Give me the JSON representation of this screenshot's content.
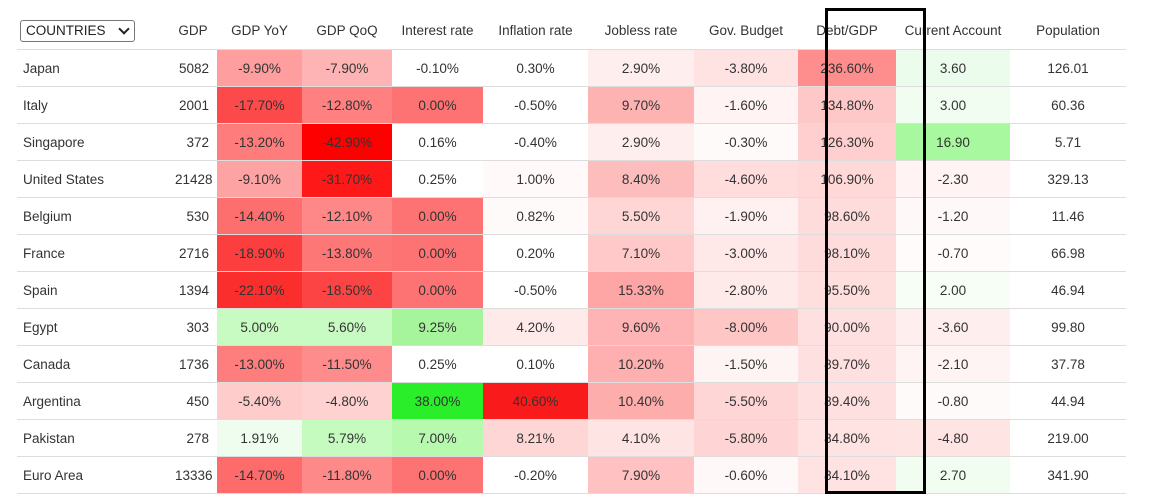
{
  "country_selector": {
    "label": "COUNTRIES"
  },
  "headers": [
    "GDP",
    "GDP YoY",
    "GDP QoQ",
    "Interest rate",
    "Inflation rate",
    "Jobless rate",
    "Gov. Budget",
    "Debt/GDP",
    "Current Account",
    "Population"
  ],
  "highlighted_column": "Debt/GDP",
  "rows": [
    {
      "country": "Japan",
      "gdp": "5082",
      "cells": [
        {
          "value": "-9.90%",
          "color": "#fe9e9e"
        },
        {
          "value": "-7.90%",
          "color": "#feb4b4"
        },
        {
          "value": "-0.10%",
          "color": "#ffffff"
        },
        {
          "value": "0.30%",
          "color": "#ffffff"
        },
        {
          "value": "2.90%",
          "color": "#ffeeee"
        },
        {
          "value": "-3.80%",
          "color": "#ffe3e3"
        },
        {
          "value": "236.60%",
          "color": "#fe8d8d"
        },
        {
          "value": "3.60",
          "color": "#ecfcec"
        },
        {
          "value": "126.01",
          "color": "#ffffff"
        }
      ]
    },
    {
      "country": "Italy",
      "gdp": "2001",
      "cells": [
        {
          "value": "-17.70%",
          "color": "#fc4a4a"
        },
        {
          "value": "-12.80%",
          "color": "#fe8080"
        },
        {
          "value": "0.00%",
          "color": "#fd7373"
        },
        {
          "value": "-0.50%",
          "color": "#ffffff"
        },
        {
          "value": "9.70%",
          "color": "#feb3b3"
        },
        {
          "value": "-1.60%",
          "color": "#fff3f3"
        },
        {
          "value": "134.80%",
          "color": "#ffc8c8"
        },
        {
          "value": "3.00",
          "color": "#f1fdf1"
        },
        {
          "value": "60.36",
          "color": "#ffffff"
        }
      ]
    },
    {
      "country": "Singapore",
      "gdp": "372",
      "cells": [
        {
          "value": "-13.20%",
          "color": "#fe7c7c"
        },
        {
          "value": "-42.90%",
          "color": "#ff0000"
        },
        {
          "value": "0.16%",
          "color": "#ffffff"
        },
        {
          "value": "-0.40%",
          "color": "#ffffff"
        },
        {
          "value": "2.90%",
          "color": "#ffeeee"
        },
        {
          "value": "-0.30%",
          "color": "#fffafa"
        },
        {
          "value": "126.30%",
          "color": "#ffcece"
        },
        {
          "value": "16.90",
          "color": "#a8f8a0"
        },
        {
          "value": "5.71",
          "color": "#ffffff"
        }
      ]
    },
    {
      "country": "United States",
      "gdp": "21428",
      "cells": [
        {
          "value": "-9.10%",
          "color": "#fea3a3"
        },
        {
          "value": "-31.70%",
          "color": "#ff1818"
        },
        {
          "value": "0.25%",
          "color": "#ffffff"
        },
        {
          "value": "1.00%",
          "color": "#fff9f9"
        },
        {
          "value": "8.40%",
          "color": "#febdbd"
        },
        {
          "value": "-4.60%",
          "color": "#ffdddd"
        },
        {
          "value": "106.90%",
          "color": "#ffd8d8"
        },
        {
          "value": "-2.30",
          "color": "#fff3f3"
        },
        {
          "value": "329.13",
          "color": "#ffffff"
        }
      ]
    },
    {
      "country": "Belgium",
      "gdp": "530",
      "cells": [
        {
          "value": "-14.40%",
          "color": "#fd6e6e"
        },
        {
          "value": "-12.10%",
          "color": "#fe8787"
        },
        {
          "value": "0.00%",
          "color": "#fd7373"
        },
        {
          "value": "0.82%",
          "color": "#fffafa"
        },
        {
          "value": "5.50%",
          "color": "#ffd6d6"
        },
        {
          "value": "-1.90%",
          "color": "#fff1f1"
        },
        {
          "value": "98.60%",
          "color": "#ffdcdc"
        },
        {
          "value": "-1.20",
          "color": "#fff8f8"
        },
        {
          "value": "11.46",
          "color": "#ffffff"
        }
      ]
    },
    {
      "country": "France",
      "gdp": "2716",
      "cells": [
        {
          "value": "-18.90%",
          "color": "#fc3e3e"
        },
        {
          "value": "-13.80%",
          "color": "#fe7777"
        },
        {
          "value": "0.00%",
          "color": "#fd7373"
        },
        {
          "value": "0.20%",
          "color": "#ffffff"
        },
        {
          "value": "7.10%",
          "color": "#ffc9c9"
        },
        {
          "value": "-3.00%",
          "color": "#ffe8e8"
        },
        {
          "value": "98.10%",
          "color": "#ffdcdc"
        },
        {
          "value": "-0.70",
          "color": "#fffbfb"
        },
        {
          "value": "66.98",
          "color": "#ffffff"
        }
      ]
    },
    {
      "country": "Spain",
      "gdp": "1394",
      "cells": [
        {
          "value": "-22.10%",
          "color": "#fb2e2e"
        },
        {
          "value": "-18.50%",
          "color": "#fd4444"
        },
        {
          "value": "0.00%",
          "color": "#fd7373"
        },
        {
          "value": "-0.50%",
          "color": "#ffffff"
        },
        {
          "value": "15.33%",
          "color": "#fea5a5"
        },
        {
          "value": "-2.80%",
          "color": "#ffeaea"
        },
        {
          "value": "95.50%",
          "color": "#ffdede"
        },
        {
          "value": "2.00",
          "color": "#f6fef6"
        },
        {
          "value": "46.94",
          "color": "#ffffff"
        }
      ]
    },
    {
      "country": "Egypt",
      "gdp": "303",
      "cells": [
        {
          "value": "5.00%",
          "color": "#c8fbc2"
        },
        {
          "value": "5.60%",
          "color": "#c8fbc2"
        },
        {
          "value": "9.25%",
          "color": "#a6f59c"
        },
        {
          "value": "4.20%",
          "color": "#ffeaea"
        },
        {
          "value": "9.60%",
          "color": "#feb4b4"
        },
        {
          "value": "-8.00%",
          "color": "#ffc6c6"
        },
        {
          "value": "90.00%",
          "color": "#ffe0e0"
        },
        {
          "value": "-3.60",
          "color": "#ffeeee"
        },
        {
          "value": "99.80",
          "color": "#ffffff"
        }
      ]
    },
    {
      "country": "Canada",
      "gdp": "1736",
      "cells": [
        {
          "value": "-13.00%",
          "color": "#fe7e7e"
        },
        {
          "value": "-11.50%",
          "color": "#fe8c8c"
        },
        {
          "value": "0.25%",
          "color": "#ffffff"
        },
        {
          "value": "0.10%",
          "color": "#ffffff"
        },
        {
          "value": "10.20%",
          "color": "#feafaf"
        },
        {
          "value": "-1.50%",
          "color": "#fff4f4"
        },
        {
          "value": "89.70%",
          "color": "#ffe0e0"
        },
        {
          "value": "-2.10",
          "color": "#fff4f4"
        },
        {
          "value": "37.78",
          "color": "#ffffff"
        }
      ]
    },
    {
      "country": "Argentina",
      "gdp": "450",
      "cells": [
        {
          "value": "-5.40%",
          "color": "#ffcccc"
        },
        {
          "value": "-4.80%",
          "color": "#ffd2d2"
        },
        {
          "value": "38.00%",
          "color": "#2bee2b"
        },
        {
          "value": "40.60%",
          "color": "#f91b1b"
        },
        {
          "value": "10.40%",
          "color": "#feadad"
        },
        {
          "value": "-5.50%",
          "color": "#ffd6d6"
        },
        {
          "value": "89.40%",
          "color": "#ffe0e0"
        },
        {
          "value": "-0.80",
          "color": "#fffafa"
        },
        {
          "value": "44.94",
          "color": "#ffffff"
        }
      ]
    },
    {
      "country": "Pakistan",
      "gdp": "278",
      "cells": [
        {
          "value": "1.91%",
          "color": "#effdee"
        },
        {
          "value": "5.79%",
          "color": "#c5fbbf"
        },
        {
          "value": "7.00%",
          "color": "#b8f9b0"
        },
        {
          "value": "8.21%",
          "color": "#ffd6d6"
        },
        {
          "value": "4.10%",
          "color": "#ffe4e4"
        },
        {
          "value": "-5.80%",
          "color": "#ffd4d4"
        },
        {
          "value": "84.80%",
          "color": "#ffe2e2"
        },
        {
          "value": "-4.80",
          "color": "#ffe4e4"
        },
        {
          "value": "219.00",
          "color": "#ffffff"
        }
      ]
    },
    {
      "country": "Euro Area",
      "gdp": "13336",
      "cells": [
        {
          "value": "-14.70%",
          "color": "#fd6b6b"
        },
        {
          "value": "-11.80%",
          "color": "#fe8989"
        },
        {
          "value": "0.00%",
          "color": "#fd7373"
        },
        {
          "value": "-0.20%",
          "color": "#ffffff"
        },
        {
          "value": "7.90%",
          "color": "#ffc1c1"
        },
        {
          "value": "-0.60%",
          "color": "#fff8f8"
        },
        {
          "value": "84.10%",
          "color": "#ffe2e2"
        },
        {
          "value": "2.70",
          "color": "#f2fdf2"
        },
        {
          "value": "341.90",
          "color": "#ffffff"
        }
      ]
    }
  ]
}
